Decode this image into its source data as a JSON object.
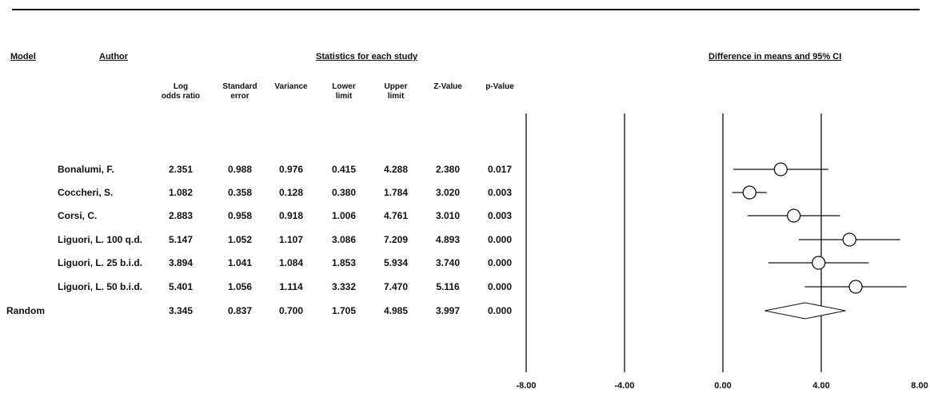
{
  "headers": {
    "model": "Model",
    "author": "Author",
    "stats": "Statistics for each study",
    "ci": "Difference in means and 95% CI"
  },
  "columns": [
    "Log\nodds ratio",
    "Standard\nerror",
    "Variance",
    "Lower\nlimit",
    "Upper\nlimit",
    "Z-Value",
    "p-Value"
  ],
  "rows": [
    {
      "model": "",
      "author": "Bonalumi, F.",
      "values": [
        "2.351",
        "0.988",
        "0.976",
        "0.415",
        "4.288",
        "2.380",
        "0.017"
      ]
    },
    {
      "model": "",
      "author": "Coccheri, S.",
      "values": [
        "1.082",
        "0.358",
        "0.128",
        "0.380",
        "1.784",
        "3.020",
        "0.003"
      ]
    },
    {
      "model": "",
      "author": "Corsi, C.",
      "values": [
        "2.883",
        "0.958",
        "0.918",
        "1.006",
        "4.761",
        "3.010",
        "0.003"
      ]
    },
    {
      "model": "",
      "author": "Liguori, L. 100 q.d.",
      "values": [
        "5.147",
        "1.052",
        "1.107",
        "3.086",
        "7.209",
        "4.893",
        "0.000"
      ]
    },
    {
      "model": "",
      "author": "Liguori, L. 25 b.i.d.",
      "values": [
        "3.894",
        "1.041",
        "1.084",
        "1.853",
        "5.934",
        "3.740",
        "0.000"
      ]
    },
    {
      "model": "",
      "author": "Liguori, L. 50 b.i.d.",
      "values": [
        "5.401",
        "1.056",
        "1.114",
        "3.332",
        "7.470",
        "5.116",
        "0.000"
      ]
    },
    {
      "model": "Random",
      "author": "",
      "values": [
        "3.345",
        "0.837",
        "0.700",
        "1.705",
        "4.985",
        "3.997",
        "0.000"
      ]
    }
  ],
  "chart_data": {
    "type": "scatter",
    "title": "Difference in means and 95% CI",
    "xlim": [
      -8,
      8
    ],
    "xticks": [
      "-8.00",
      "-4.00",
      "0.00",
      "4.00",
      "8.00"
    ],
    "reference_lines": [
      -8,
      -4,
      0,
      4
    ],
    "studies": [
      {
        "label": "Bonalumi, F.",
        "estimate": 2.351,
        "lower": 0.415,
        "upper": 4.288
      },
      {
        "label": "Coccheri, S.",
        "estimate": 1.082,
        "lower": 0.38,
        "upper": 1.784
      },
      {
        "label": "Corsi, C.",
        "estimate": 2.883,
        "lower": 1.006,
        "upper": 4.761
      },
      {
        "label": "Liguori, L. 100 q.d.",
        "estimate": 5.147,
        "lower": 3.086,
        "upper": 7.209
      },
      {
        "label": "Liguori, L. 25 b.i.d.",
        "estimate": 3.894,
        "lower": 1.853,
        "upper": 5.934
      },
      {
        "label": "Liguori, L. 50 b.i.d.",
        "estimate": 5.401,
        "lower": 3.332,
        "upper": 7.47
      }
    ],
    "summary": {
      "label": "Random",
      "estimate": 3.345,
      "lower": 1.705,
      "upper": 4.985
    }
  }
}
